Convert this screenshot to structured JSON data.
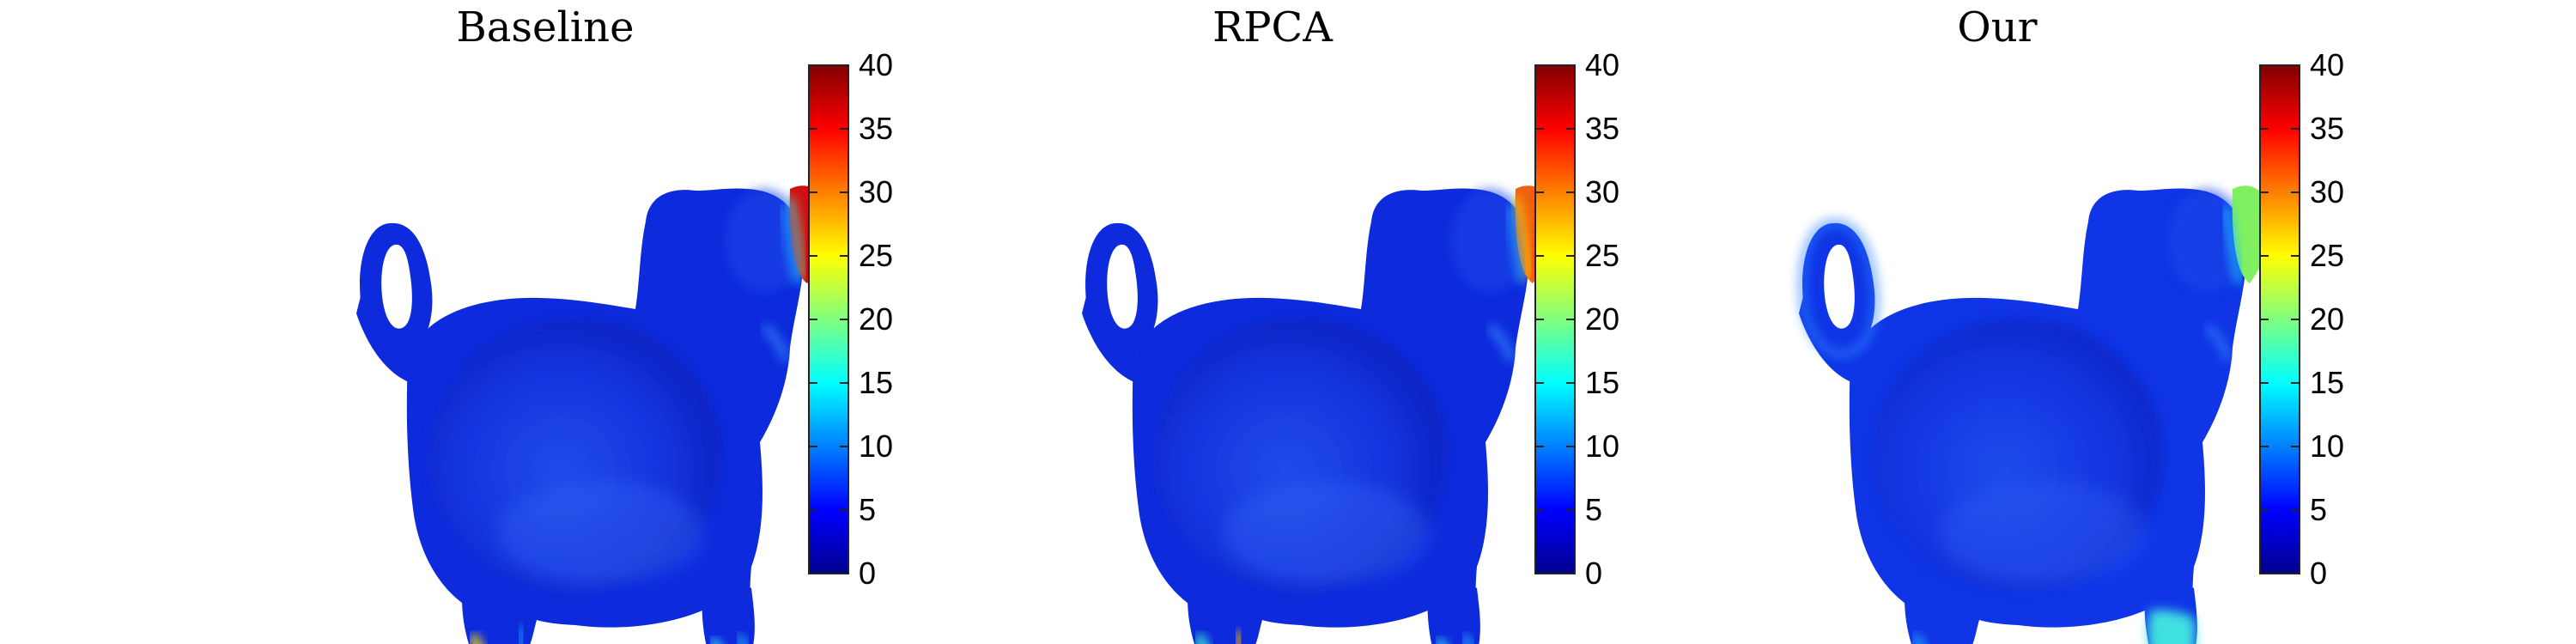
{
  "figure": {
    "panels": [
      {
        "title": "Baseline",
        "colorbar": {
          "min": 0,
          "max": 40,
          "ticks": [
            0,
            5,
            10,
            15,
            20,
            25,
            30,
            35,
            40
          ]
        },
        "hotspots": [
          {
            "region": "ear-tip",
            "value": 38
          },
          {
            "region": "chin",
            "value": 14
          },
          {
            "region": "back-foot",
            "value": 26
          },
          {
            "region": "front-foot",
            "value": 18
          }
        ]
      },
      {
        "title": "RPCA",
        "colorbar": {
          "min": 0,
          "max": 40,
          "ticks": [
            0,
            5,
            10,
            15,
            20,
            25,
            30,
            35,
            40
          ]
        },
        "hotspots": [
          {
            "region": "ear-tip",
            "value": 32
          },
          {
            "region": "chin",
            "value": 12
          },
          {
            "region": "back-foot",
            "value": 22
          },
          {
            "region": "front-foot",
            "value": 20
          }
        ]
      },
      {
        "title": "Our",
        "colorbar": {
          "min": 0,
          "max": 40,
          "ticks": [
            0,
            5,
            10,
            15,
            20,
            25,
            30,
            35,
            40
          ]
        },
        "hotspots": [
          {
            "region": "ear-tip",
            "value": 21
          },
          {
            "region": "chin",
            "value": 9
          },
          {
            "region": "back-foot",
            "value": 12
          },
          {
            "region": "front-foot",
            "value": 16
          }
        ]
      }
    ],
    "colors": {
      "surface_base": "#0d2bdc",
      "surface_highlight": "#2a5af0",
      "surface_shadow": "#0a1cb0",
      "frame": "#222222"
    },
    "colormap": "jet"
  }
}
